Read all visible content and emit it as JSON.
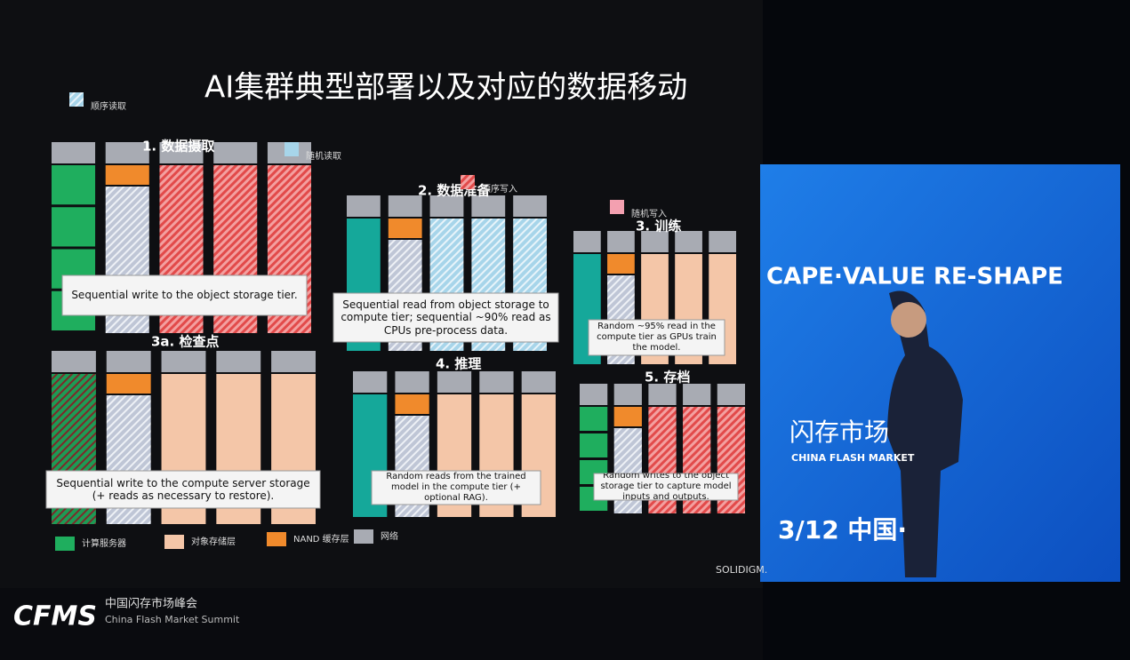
{
  "slide": {
    "title": "AI集群典型部署以及对应的数据移动",
    "legend_top": [
      "顺序读取",
      "随机读取",
      "顺序写入",
      "随机写入"
    ],
    "sections": [
      {
        "title": "1. 数据摄取",
        "caption": "Sequential write to the object storage tier."
      },
      {
        "title": "2. 数据准备",
        "caption": "Sequential read from object storage to compute tier; sequential ~90% read as CPUs pre-process data."
      },
      {
        "title": "3. 训练",
        "caption": "Random ~95% read in the compute tier as GPUs train the model."
      },
      {
        "title": "3a. 检查点",
        "caption": "Sequential write to the compute server storage (+ reads as necessary to restore)."
      },
      {
        "title": "4. 推理",
        "caption": "Random reads from the trained model in the compute tier (+ optional RAG)."
      },
      {
        "title": "5. 存档",
        "caption": "Random writes to the object storage tier to capture model inputs and outputs."
      }
    ],
    "legend_bottom": [
      "计算服务器",
      "对象存储层",
      "NAND 缓存层",
      "网络"
    ],
    "brand": "SOLIDIGM."
  },
  "footer": {
    "logo": "CFMS",
    "name_cn": "中国闪存市场峰会",
    "name_en": "China Flash Market Summit"
  },
  "screen": {
    "slogan": "CAPE·VALUE RE-SHAPE",
    "name_cn": "闪存市场",
    "name_en": "CHINA FLASH MARKET",
    "date": "3/12  中国·"
  }
}
